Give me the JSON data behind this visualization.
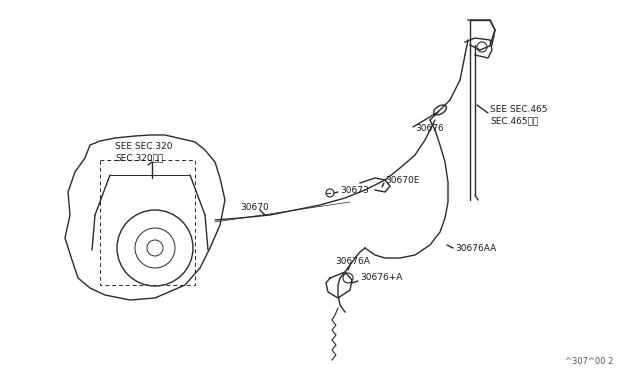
{
  "title": "",
  "bg_color": "#ffffff",
  "line_color": "#2a2a2a",
  "text_color": "#1a1a1a",
  "footnote": "^307^00 2",
  "labels": {
    "sec320": "SEE SEC.320\nSEC.320参照",
    "sec465": "SEE SEC.465\nSEC.465参照",
    "p30670": "30670",
    "p30673": "30673",
    "p30676": "30676",
    "p30670E": "30670E",
    "p30676AA": "30676AA",
    "p30676A": "30676A",
    "p30676pA": "30676+A"
  }
}
